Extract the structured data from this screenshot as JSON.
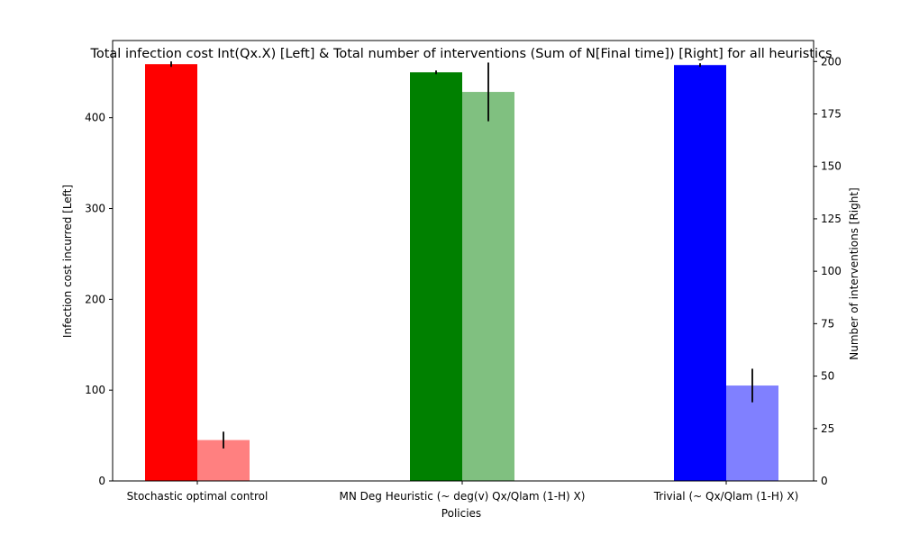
{
  "chart_data": {
    "type": "bar",
    "title": "Total infection cost Int(Qx.X) [Left] & Total number of interventions (Sum of N[Final time]) [Right] for all heuristics",
    "xlabel": "Policies",
    "ylabel_left": "Infection cost incurred [Left]",
    "ylabel_right": "Number of interventions [Right]",
    "categories": [
      "Stochastic optimal control",
      "MN Deg Heuristic (~ deg(v) Qx/Qlam (1-H) X)",
      "Trivial (~ Qx/Qlam (1-H) X)"
    ],
    "ylim_left": [
      0,
      485
    ],
    "ylim_right": [
      0,
      210
    ],
    "yticks_left": [
      0,
      100,
      200,
      300,
      400
    ],
    "yticks_right": [
      0,
      25,
      50,
      75,
      100,
      125,
      150,
      175,
      200
    ],
    "grid": false,
    "series": [
      {
        "axis": "left",
        "values": [
          459,
          450,
          458
        ],
        "errors": [
          3,
          2,
          2
        ],
        "colors": [
          "#ff0000",
          "#008000",
          "#0000ff"
        ]
      },
      {
        "axis": "right",
        "values": [
          19.5,
          185.5,
          45.5
        ],
        "errors": [
          4,
          14,
          8
        ],
        "colors": [
          "#ff8080",
          "#80c080",
          "#8080ff"
        ]
      }
    ]
  }
}
